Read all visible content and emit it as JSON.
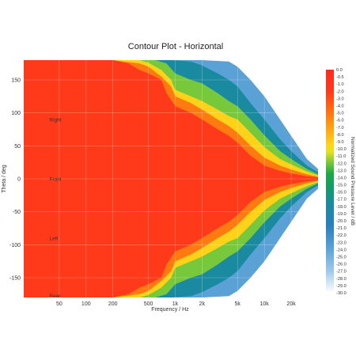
{
  "chart_data": {
    "type": "heatmap",
    "title": "Contour Plot - Horizontal",
    "xlabel": "Frequency / Hz",
    "ylabel": "Theta / deg",
    "colorbar_label": "Normalized Sound Pressure Level / dB",
    "x_scale": "log",
    "xlim": [
      20,
      40000
    ],
    "ylim": [
      -180,
      180
    ],
    "x_ticks": [
      {
        "value": 50,
        "label": "50"
      },
      {
        "value": 100,
        "label": "100"
      },
      {
        "value": 200,
        "label": "200"
      },
      {
        "value": 500,
        "label": "500"
      },
      {
        "value": 1000,
        "label": "1k"
      },
      {
        "value": 2000,
        "label": "2k"
      },
      {
        "value": 5000,
        "label": "5k"
      },
      {
        "value": 10000,
        "label": "10k"
      },
      {
        "value": 20000,
        "label": "20k"
      }
    ],
    "y_ticks": [
      {
        "value": 150,
        "label": "150"
      },
      {
        "value": 100,
        "label": "100"
      },
      {
        "value": 50,
        "label": "50"
      },
      {
        "value": 0,
        "label": "0"
      },
      {
        "value": -50,
        "label": "-50"
      },
      {
        "value": -100,
        "label": "-100"
      },
      {
        "value": -150,
        "label": "-150"
      }
    ],
    "annotations": [
      {
        "text": "Right",
        "x": 35,
        "y": 90
      },
      {
        "text": "Front",
        "x": 35,
        "y": 0
      },
      {
        "text": "Left",
        "x": 35,
        "y": -90
      },
      {
        "text": "Rear",
        "x": 35,
        "y": -180
      }
    ],
    "colorbar_ticks": [
      "0.0",
      "-0.5",
      "-1.0",
      "-2.0",
      "-3.0",
      "-4.0",
      "-5.0",
      "-6.0",
      "-7.0",
      "-8.0",
      "-9.0",
      "-10.0",
      "-11.0",
      "-12.0",
      "-13.0",
      "-14.0",
      "-15.0",
      "-16.0",
      "-17.0",
      "-18.0",
      "-19.0",
      "-20.0",
      "-21.0",
      "-22.0",
      "-23.0",
      "-24.0",
      "-25.0",
      "-26.0",
      "-27.0",
      "-28.0",
      "-29.0",
      "-30.0"
    ],
    "colorbar_range": [
      0,
      -30
    ],
    "colorscale": [
      {
        "level": 0,
        "color": "#ff2a1e"
      },
      {
        "level": -3,
        "color": "#ff3a1a"
      },
      {
        "level": -6,
        "color": "#ff7a10"
      },
      {
        "level": -8,
        "color": "#ffa612"
      },
      {
        "level": -10,
        "color": "#ffd21a"
      },
      {
        "level": -11,
        "color": "#e6e222"
      },
      {
        "level": -12.5,
        "color": "#78c83c"
      },
      {
        "level": -14,
        "color": "#1aa846"
      },
      {
        "level": -16,
        "color": "#139c6a"
      },
      {
        "level": -18,
        "color": "#1a8aa0"
      },
      {
        "level": -21,
        "color": "#2a7fbe"
      },
      {
        "level": -24,
        "color": "#5aa2d6"
      },
      {
        "level": -27,
        "color": "#9cc8ea"
      },
      {
        "level": -30,
        "color": "#ffffff"
      }
    ],
    "contour_levels": [
      {
        "level": -3,
        "half_width": [
          [
            20,
            180
          ],
          [
            200,
            180
          ],
          [
            300,
            175
          ],
          [
            400,
            165
          ],
          [
            500,
            160
          ],
          [
            700,
            150
          ],
          [
            800,
            130
          ],
          [
            1000,
            110
          ],
          [
            1500,
            100
          ],
          [
            2000,
            90
          ],
          [
            3000,
            75
          ],
          [
            4000,
            65
          ],
          [
            5000,
            55
          ],
          [
            7000,
            35
          ],
          [
            10000,
            20
          ],
          [
            15000,
            12
          ],
          [
            20000,
            8
          ],
          [
            30000,
            4
          ],
          [
            40000,
            2
          ]
        ]
      },
      {
        "level": -6,
        "half_width": [
          [
            20,
            180
          ],
          [
            200,
            180
          ],
          [
            400,
            175
          ],
          [
            500,
            170
          ],
          [
            700,
            155
          ],
          [
            900,
            140
          ],
          [
            1000,
            125
          ],
          [
            1500,
            115
          ],
          [
            2000,
            105
          ],
          [
            3000,
            90
          ],
          [
            4000,
            80
          ],
          [
            5000,
            70
          ],
          [
            7000,
            50
          ],
          [
            10000,
            32
          ],
          [
            15000,
            20
          ],
          [
            20000,
            14
          ],
          [
            30000,
            7
          ],
          [
            40000,
            3
          ]
        ]
      },
      {
        "level": -10,
        "half_width": [
          [
            20,
            180
          ],
          [
            400,
            180
          ],
          [
            500,
            176
          ],
          [
            700,
            165
          ],
          [
            900,
            150
          ],
          [
            1000,
            135
          ],
          [
            1500,
            125
          ],
          [
            2000,
            118
          ],
          [
            3000,
            105
          ],
          [
            4000,
            95
          ],
          [
            5000,
            90
          ],
          [
            7000,
            70
          ],
          [
            10000,
            48
          ],
          [
            15000,
            30
          ],
          [
            20000,
            22
          ],
          [
            30000,
            11
          ],
          [
            40000,
            5
          ]
        ]
      },
      {
        "level": -13,
        "half_width": [
          [
            20,
            180
          ],
          [
            600,
            180
          ],
          [
            800,
            175
          ],
          [
            1000,
            160
          ],
          [
            1500,
            150
          ],
          [
            2000,
            145
          ],
          [
            3000,
            130
          ],
          [
            4000,
            118
          ],
          [
            5000,
            110
          ],
          [
            7000,
            90
          ],
          [
            10000,
            66
          ],
          [
            15000,
            42
          ],
          [
            20000,
            30
          ],
          [
            30000,
            15
          ],
          [
            40000,
            7
          ]
        ]
      },
      {
        "level": -18,
        "half_width": [
          [
            20,
            180
          ],
          [
            900,
            180
          ],
          [
            1500,
            178
          ],
          [
            2000,
            172
          ],
          [
            3000,
            160
          ],
          [
            4000,
            150
          ],
          [
            5000,
            140
          ],
          [
            7000,
            115
          ],
          [
            10000,
            90
          ],
          [
            15000,
            60
          ],
          [
            20000,
            42
          ],
          [
            30000,
            20
          ],
          [
            40000,
            10
          ]
        ]
      },
      {
        "level": -24,
        "half_width": [
          [
            20,
            180
          ],
          [
            2000,
            180
          ],
          [
            4000,
            178
          ],
          [
            5000,
            170
          ],
          [
            7000,
            150
          ],
          [
            10000,
            125
          ],
          [
            15000,
            90
          ],
          [
            20000,
            65
          ],
          [
            30000,
            30
          ],
          [
            40000,
            15
          ]
        ]
      }
    ]
  }
}
